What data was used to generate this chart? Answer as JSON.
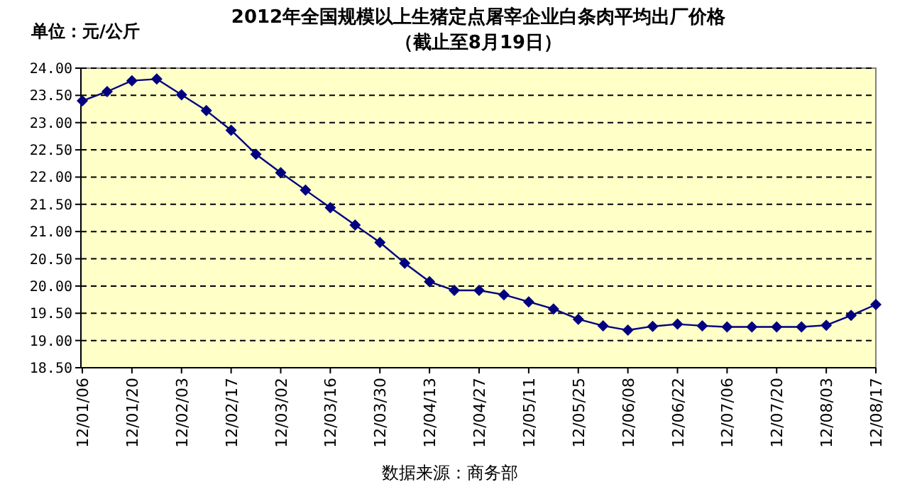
{
  "chart_data": {
    "type": "line",
    "title": "2012年全国规模以上生猪定点屠宰企业白条肉平均出厂价格",
    "subtitle": "（截止至8月19日）",
    "annotations": [
      "单位：元/公斤",
      "数据来源：商务部"
    ],
    "categories": [
      "12/01/06",
      null,
      "12/01/20",
      null,
      "12/02/03",
      null,
      "12/02/17",
      null,
      "12/03/02",
      null,
      "12/03/16",
      null,
      "12/03/30",
      null,
      "12/04/13",
      null,
      "12/04/27",
      null,
      "12/05/11",
      null,
      "12/05/25",
      null,
      "12/06/08",
      null,
      "12/06/22",
      null,
      "12/07/06",
      null,
      "12/07/20",
      null,
      "12/08/03",
      null,
      "12/08/17"
    ],
    "series": [
      {
        "color": "#000080",
        "values": [
          23.4,
          23.57,
          23.77,
          23.8,
          23.51,
          23.22,
          22.86,
          22.42,
          22.08,
          21.76,
          21.44,
          21.12,
          20.8,
          20.42,
          20.08,
          19.92,
          19.92,
          19.84,
          19.71,
          19.58,
          19.39,
          19.27,
          19.19,
          19.26,
          19.3,
          19.27,
          19.25,
          19.25,
          19.25,
          19.25,
          19.28,
          19.46,
          19.66
        ]
      }
    ],
    "ylim": [
      18.5,
      24
    ],
    "yticks": [
      {
        "value": 18.5,
        "label": "18.50"
      },
      {
        "value": 19,
        "label": "19.00"
      },
      {
        "value": 19.5,
        "label": "19.50"
      },
      {
        "value": 20,
        "label": "20.00"
      },
      {
        "value": 20.5,
        "label": "20.50"
      },
      {
        "value": 21,
        "label": "21.00"
      },
      {
        "value": 21.5,
        "label": "21.50"
      },
      {
        "value": 22,
        "label": "22.00"
      },
      {
        "value": 22.5,
        "label": "22.50"
      },
      {
        "value": 23,
        "label": "23.00"
      },
      {
        "value": 23.5,
        "label": "23.50"
      },
      {
        "value": 24,
        "label": "24.00"
      }
    ],
    "grid": "y",
    "marker": "diamond",
    "line_style": "solid"
  }
}
